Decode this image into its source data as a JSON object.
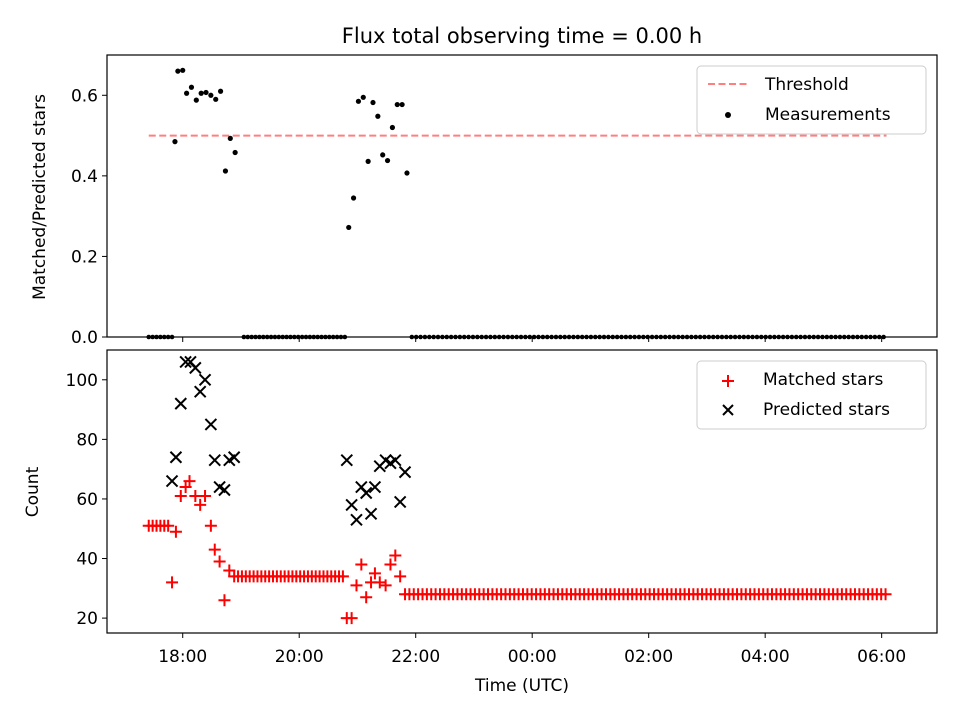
{
  "chart_data": {
    "title": "Flux total observing time = 0.00 h",
    "xlabel": "Time (UTC)",
    "x_tick_labels": [
      "18:00",
      "20:00",
      "22:00",
      "00:00",
      "02:00",
      "04:00",
      "06:00"
    ],
    "top": {
      "type": "scatter",
      "ylabel": "Matched/Predicted stars",
      "ylim": [
        0,
        0.7
      ],
      "y_ticks": [
        "0.0",
        "0.2",
        "0.4",
        "0.6"
      ],
      "threshold": {
        "name": "Threshold",
        "value": 0.5,
        "x_from": "17:25",
        "x_to": "06:05",
        "color": "#ff7f7f"
      },
      "measurements": {
        "name": "Measurements",
        "color": "#000000",
        "points": [
          [
            "17:52",
            0.485
          ],
          [
            "17:55",
            0.66
          ],
          [
            "18:00",
            0.662
          ],
          [
            "18:04",
            0.605
          ],
          [
            "18:09",
            0.62
          ],
          [
            "18:14",
            0.588
          ],
          [
            "18:19",
            0.605
          ],
          [
            "18:24",
            0.607
          ],
          [
            "18:29",
            0.6
          ],
          [
            "18:34",
            0.59
          ],
          [
            "18:39",
            0.61
          ],
          [
            "18:44",
            0.412
          ],
          [
            "18:49",
            0.493
          ],
          [
            "18:54",
            0.458
          ],
          [
            "20:51",
            0.272
          ],
          [
            "20:56",
            0.345
          ],
          [
            "21:01",
            0.585
          ],
          [
            "21:06",
            0.595
          ],
          [
            "21:11",
            0.436
          ],
          [
            "21:16",
            0.582
          ],
          [
            "21:21",
            0.548
          ],
          [
            "21:26",
            0.452
          ],
          [
            "21:31",
            0.438
          ],
          [
            "21:36",
            0.52
          ],
          [
            "21:41",
            0.577
          ],
          [
            "21:46",
            0.577
          ],
          [
            "21:51",
            0.407
          ]
        ]
      },
      "zero_runs": [
        {
          "from": "17:25",
          "to": "17:50",
          "step_min": 4
        },
        {
          "from": "19:03",
          "to": "20:47",
          "step_min": 4
        },
        {
          "from": "21:56",
          "to": "06:05",
          "step_min": 4.5
        }
      ],
      "legend_position": "upper right"
    },
    "bottom": {
      "type": "scatter",
      "ylabel": "Count",
      "ylim": [
        15,
        110
      ],
      "y_ticks": [
        "20",
        "40",
        "60",
        "80",
        "100"
      ],
      "matched": {
        "name": "Matched stars",
        "color": "#ff0000",
        "points": [
          [
            "17:25",
            51
          ],
          [
            "17:29",
            51
          ],
          [
            "17:33",
            51
          ],
          [
            "17:37",
            51
          ],
          [
            "17:41",
            51
          ],
          [
            "17:45",
            51
          ],
          [
            "17:49",
            32
          ],
          [
            "17:53",
            49
          ],
          [
            "17:58",
            61
          ],
          [
            "18:03",
            64
          ],
          [
            "18:07",
            66
          ],
          [
            "18:13",
            61
          ],
          [
            "18:18",
            58
          ],
          [
            "18:23",
            61
          ],
          [
            "18:29",
            51
          ],
          [
            "18:33",
            43
          ],
          [
            "18:38",
            39
          ],
          [
            "18:43",
            26
          ],
          [
            "18:48",
            36
          ],
          [
            "18:53",
            34
          ],
          [
            "20:49",
            20
          ],
          [
            "20:54",
            20
          ],
          [
            "20:59",
            31
          ],
          [
            "21:04",
            38
          ],
          [
            "21:09",
            27
          ],
          [
            "21:14",
            32
          ],
          [
            "21:18",
            35
          ],
          [
            "21:23",
            32
          ],
          [
            "21:29",
            31
          ],
          [
            "21:34",
            38
          ],
          [
            "21:39",
            41
          ],
          [
            "21:44",
            34
          ]
        ],
        "runs": [
          {
            "from": "18:57",
            "to": "20:45",
            "value": 34,
            "step_min": 4
          },
          {
            "from": "21:49",
            "to": "06:05",
            "value": 28,
            "step_min": 4.5
          }
        ]
      },
      "predicted": {
        "name": "Predicted stars",
        "color": "#000000",
        "points": [
          [
            "17:49",
            66
          ],
          [
            "17:53",
            74
          ],
          [
            "17:58",
            92
          ],
          [
            "18:03",
            106
          ],
          [
            "18:08",
            106
          ],
          [
            "18:13",
            104
          ],
          [
            "18:18",
            96
          ],
          [
            "18:23",
            100
          ],
          [
            "18:29",
            85
          ],
          [
            "18:33",
            73
          ],
          [
            "18:38",
            64
          ],
          [
            "18:43",
            63
          ],
          [
            "18:48",
            73
          ],
          [
            "18:53",
            74
          ],
          [
            "20:49",
            73
          ],
          [
            "20:54",
            58
          ],
          [
            "20:59",
            53
          ],
          [
            "21:04",
            64
          ],
          [
            "21:09",
            62
          ],
          [
            "21:14",
            55
          ],
          [
            "21:18",
            64
          ],
          [
            "21:23",
            71
          ],
          [
            "21:29",
            73
          ],
          [
            "21:34",
            72
          ],
          [
            "21:39",
            73
          ],
          [
            "21:44",
            59
          ],
          [
            "21:49",
            69
          ]
        ]
      },
      "legend_position": "upper right"
    }
  }
}
